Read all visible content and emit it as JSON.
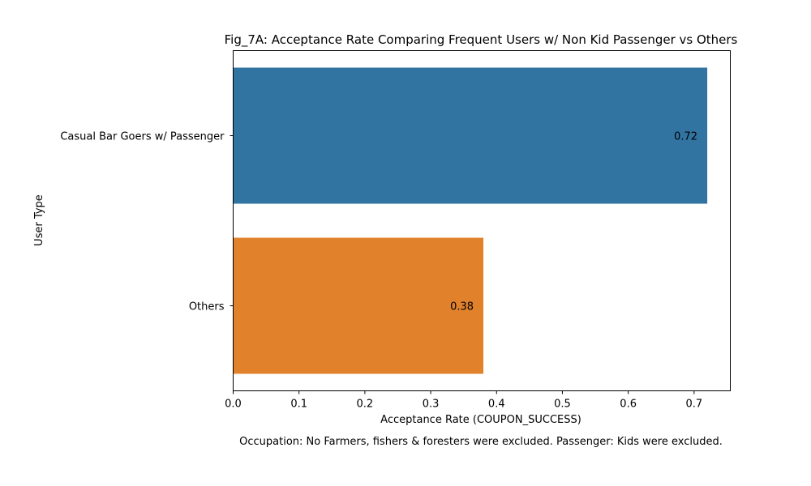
{
  "chart_data": {
    "type": "bar",
    "orientation": "horizontal",
    "title": "Fig_7A: Acceptance Rate Comparing Frequent Users w/ Non Kid Passenger vs Others",
    "xlabel": "Acceptance Rate (COUPON_SUCCESS)",
    "ylabel": "User Type",
    "categories": [
      "Casual Bar Goers w/ Passenger",
      "Others"
    ],
    "values": [
      0.72,
      0.38
    ],
    "data_labels": [
      "0.72",
      "0.38"
    ],
    "bar_colors": [
      "#3274a1",
      "#e1812c"
    ],
    "xlim": [
      0,
      0.755
    ],
    "xticks": [
      0.0,
      0.1,
      0.2,
      0.3,
      0.4,
      0.5,
      0.6,
      0.7
    ],
    "xtick_labels": [
      "0.0",
      "0.1",
      "0.2",
      "0.3",
      "0.4",
      "0.5",
      "0.6",
      "0.7"
    ],
    "grid": false,
    "legend": "none",
    "footnote": "Occupation: No Farmers, fishers & foresters were excluded. Passenger: Kids were excluded."
  }
}
